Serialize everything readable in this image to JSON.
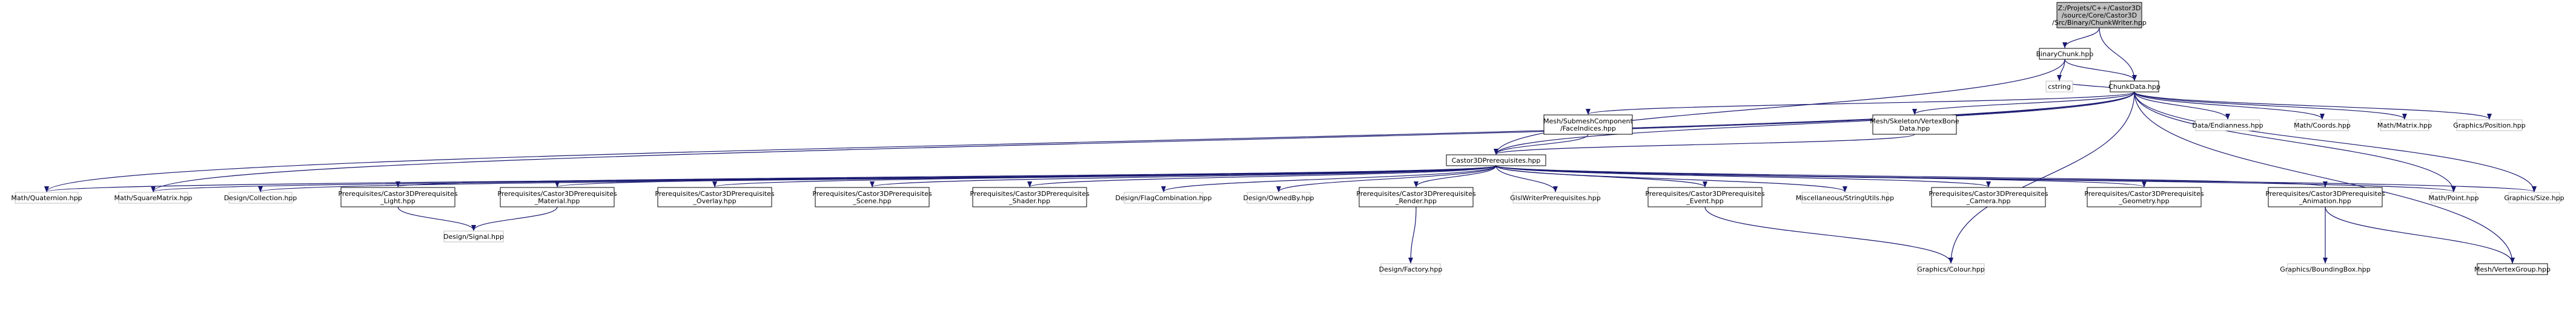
{
  "colors": {
    "edge": "#191970",
    "node_border": "#000000",
    "node_border_external": "#bfbfbf",
    "root_fill": "#bfbfbf",
    "node_fill": "#ffffff"
  },
  "graph": {
    "title": "",
    "nodes": [
      {
        "id": "root",
        "lines": [
          "Z:/Projets/C++/Castor3D",
          "/source/Core/Castor3D",
          "/Src/Binary/ChunkWriter.hpp"
        ],
        "kind": "root"
      },
      {
        "id": "binarychunk",
        "lines": [
          "BinaryChunk.hpp"
        ],
        "kind": "internal"
      },
      {
        "id": "cstring",
        "lines": [
          "cstring"
        ],
        "kind": "external"
      },
      {
        "id": "chunkdata",
        "lines": [
          "ChunkData.hpp"
        ],
        "kind": "internal"
      },
      {
        "id": "faceindices",
        "lines": [
          "Mesh/SubmeshComponent",
          "/FaceIndices.hpp"
        ],
        "kind": "internal"
      },
      {
        "id": "vertexbone",
        "lines": [
          "Mesh/Skeleton/VertexBone",
          "Data.hpp"
        ],
        "kind": "internal"
      },
      {
        "id": "dataendianness",
        "lines": [
          "Data/Endianness.hpp"
        ],
        "kind": "external"
      },
      {
        "id": "coords",
        "lines": [
          "Math/Coords.hpp"
        ],
        "kind": "external"
      },
      {
        "id": "matrix",
        "lines": [
          "Math/Matrix.hpp"
        ],
        "kind": "external"
      },
      {
        "id": "position",
        "lines": [
          "Graphics/Position.hpp"
        ],
        "kind": "external"
      },
      {
        "id": "prereq",
        "lines": [
          "Castor3DPrerequisites.hpp"
        ],
        "kind": "internal"
      },
      {
        "id": "quaternion",
        "lines": [
          "Math/Quaternion.hpp"
        ],
        "kind": "external"
      },
      {
        "id": "squarematrix",
        "lines": [
          "Math/SquareMatrix.hpp"
        ],
        "kind": "external"
      },
      {
        "id": "collection",
        "lines": [
          "Design/Collection.hpp"
        ],
        "kind": "external"
      },
      {
        "id": "light",
        "lines": [
          "Prerequisites/Castor3DPrerequisites",
          "_Light.hpp"
        ],
        "kind": "internal"
      },
      {
        "id": "material",
        "lines": [
          "Prerequisites/Castor3DPrerequisites",
          "_Material.hpp"
        ],
        "kind": "internal"
      },
      {
        "id": "overlay",
        "lines": [
          "Prerequisites/Castor3DPrerequisites",
          "_Overlay.hpp"
        ],
        "kind": "internal"
      },
      {
        "id": "scene",
        "lines": [
          "Prerequisites/Castor3DPrerequisites",
          "_Scene.hpp"
        ],
        "kind": "internal"
      },
      {
        "id": "shader",
        "lines": [
          "Prerequisites/Castor3DPrerequisites",
          "_Shader.hpp"
        ],
        "kind": "internal"
      },
      {
        "id": "flagcombination",
        "lines": [
          "Design/FlagCombination.hpp"
        ],
        "kind": "external"
      },
      {
        "id": "ownedby",
        "lines": [
          "Design/OwnedBy.hpp"
        ],
        "kind": "external"
      },
      {
        "id": "render",
        "lines": [
          "Prerequisites/Castor3DPrerequisites",
          "_Render.hpp"
        ],
        "kind": "internal"
      },
      {
        "id": "glslwriter",
        "lines": [
          "GlslWriterPrerequisites.hpp"
        ],
        "kind": "external"
      },
      {
        "id": "event",
        "lines": [
          "Prerequisites/Castor3DPrerequisites",
          "_Event.hpp"
        ],
        "kind": "internal"
      },
      {
        "id": "stringutils",
        "lines": [
          "Miscellaneous/StringUtils.hpp"
        ],
        "kind": "external"
      },
      {
        "id": "camera",
        "lines": [
          "Prerequisites/Castor3DPrerequisites",
          "_Camera.hpp"
        ],
        "kind": "internal"
      },
      {
        "id": "geometry",
        "lines": [
          "Prerequisites/Castor3DPrerequisites",
          "_Geometry.hpp"
        ],
        "kind": "internal"
      },
      {
        "id": "animation",
        "lines": [
          "Prerequisites/Castor3DPrerequisites",
          "_Animation.hpp"
        ],
        "kind": "internal"
      },
      {
        "id": "point",
        "lines": [
          "Math/Point.hpp"
        ],
        "kind": "external"
      },
      {
        "id": "size",
        "lines": [
          "Graphics/Size.hpp"
        ],
        "kind": "external"
      },
      {
        "id": "signal",
        "lines": [
          "Design/Signal.hpp"
        ],
        "kind": "external"
      },
      {
        "id": "factory",
        "lines": [
          "Design/Factory.hpp"
        ],
        "kind": "external"
      },
      {
        "id": "colour",
        "lines": [
          "Graphics/Colour.hpp"
        ],
        "kind": "external"
      },
      {
        "id": "boundingbox",
        "lines": [
          "Graphics/BoundingBox.hpp"
        ],
        "kind": "external"
      },
      {
        "id": "vertexgroup",
        "lines": [
          "Mesh/VertexGroup.hpp"
        ],
        "kind": "internal"
      }
    ],
    "edges": [
      [
        "root",
        "binarychunk"
      ],
      [
        "root",
        "chunkdata"
      ],
      [
        "binarychunk",
        "cstring"
      ],
      [
        "binarychunk",
        "chunkdata"
      ],
      [
        "binarychunk",
        "prereq"
      ],
      [
        "chunkdata",
        "cstring"
      ],
      [
        "chunkdata",
        "faceindices"
      ],
      [
        "chunkdata",
        "vertexbone"
      ],
      [
        "chunkdata",
        "dataendianness"
      ],
      [
        "chunkdata",
        "coords"
      ],
      [
        "chunkdata",
        "matrix"
      ],
      [
        "chunkdata",
        "position"
      ],
      [
        "chunkdata",
        "quaternion"
      ],
      [
        "chunkdata",
        "squarematrix"
      ],
      [
        "chunkdata",
        "point"
      ],
      [
        "chunkdata",
        "size"
      ],
      [
        "chunkdata",
        "colour"
      ],
      [
        "chunkdata",
        "vertexgroup"
      ],
      [
        "chunkdata",
        "prereq"
      ],
      [
        "faceindices",
        "prereq"
      ],
      [
        "vertexbone",
        "prereq"
      ],
      [
        "prereq",
        "quaternion"
      ],
      [
        "prereq",
        "squarematrix"
      ],
      [
        "prereq",
        "collection"
      ],
      [
        "prereq",
        "light"
      ],
      [
        "prereq",
        "material"
      ],
      [
        "prereq",
        "overlay"
      ],
      [
        "prereq",
        "scene"
      ],
      [
        "prereq",
        "shader"
      ],
      [
        "prereq",
        "flagcombination"
      ],
      [
        "prereq",
        "ownedby"
      ],
      [
        "prereq",
        "render"
      ],
      [
        "prereq",
        "glslwriter"
      ],
      [
        "prereq",
        "event"
      ],
      [
        "prereq",
        "stringutils"
      ],
      [
        "prereq",
        "camera"
      ],
      [
        "prereq",
        "geometry"
      ],
      [
        "prereq",
        "animation"
      ],
      [
        "prereq",
        "point"
      ],
      [
        "prereq",
        "size"
      ],
      [
        "light",
        "signal"
      ],
      [
        "material",
        "signal"
      ],
      [
        "render",
        "factory"
      ],
      [
        "event",
        "colour"
      ],
      [
        "animation",
        "boundingbox"
      ],
      [
        "animation",
        "vertexgroup"
      ]
    ]
  }
}
